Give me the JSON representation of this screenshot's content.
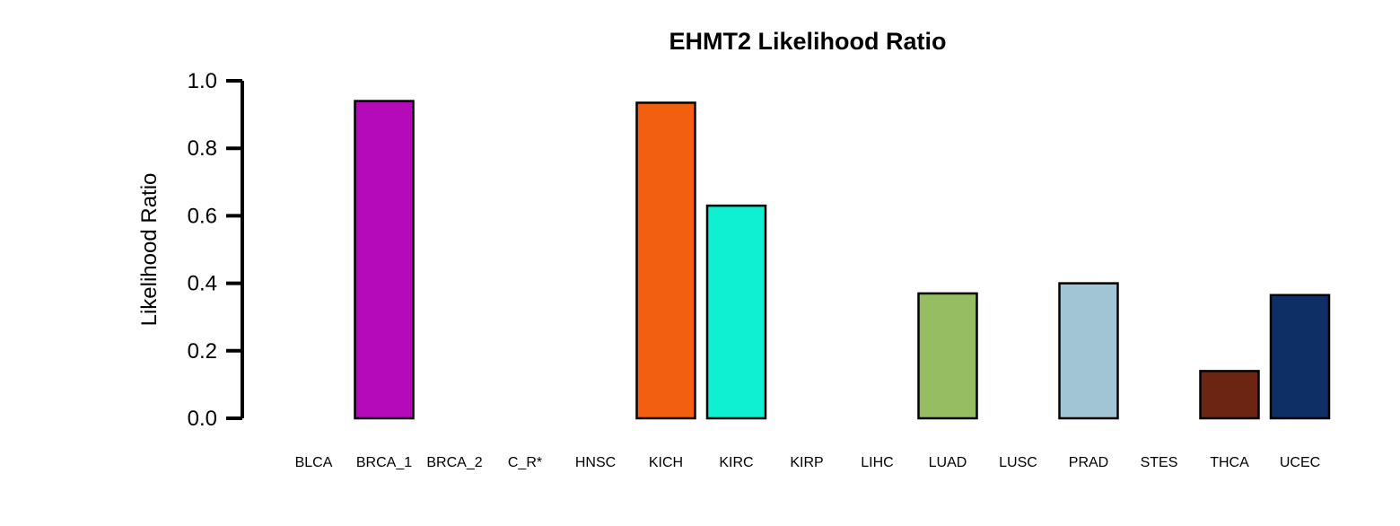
{
  "chart_data": {
    "type": "bar",
    "title": "EHMT2 Likelihood Ratio",
    "xlabel": "",
    "ylabel": "Likelihood Ratio",
    "ylim": [
      0,
      1.0
    ],
    "yticks": [
      "0.0",
      "0.2",
      "0.4",
      "0.6",
      "0.8",
      "1.0"
    ],
    "grid": false,
    "categories": [
      "BLCA",
      "BRCA_1",
      "BRCA_2",
      "C_R*",
      "HNSC",
      "KICH",
      "KIRC",
      "KIRP",
      "LIHC",
      "LUAD",
      "LUSC",
      "PRAD",
      "STES",
      "THCA",
      "UCEC"
    ],
    "values": [
      0.0,
      0.94,
      0.0,
      0.0,
      0.0,
      0.935,
      0.63,
      0.0,
      0.0,
      0.37,
      0.0,
      0.4,
      0.0,
      0.14,
      0.365
    ],
    "colors": [
      "#ffffff",
      "#b50ab8",
      "#ffffff",
      "#ffffff",
      "#ffffff",
      "#f25f10",
      "#0ff0d2",
      "#ffffff",
      "#ffffff",
      "#97bd62",
      "#ffffff",
      "#a2c5d5",
      "#ffffff",
      "#6b2512",
      "#0e2f66"
    ]
  }
}
